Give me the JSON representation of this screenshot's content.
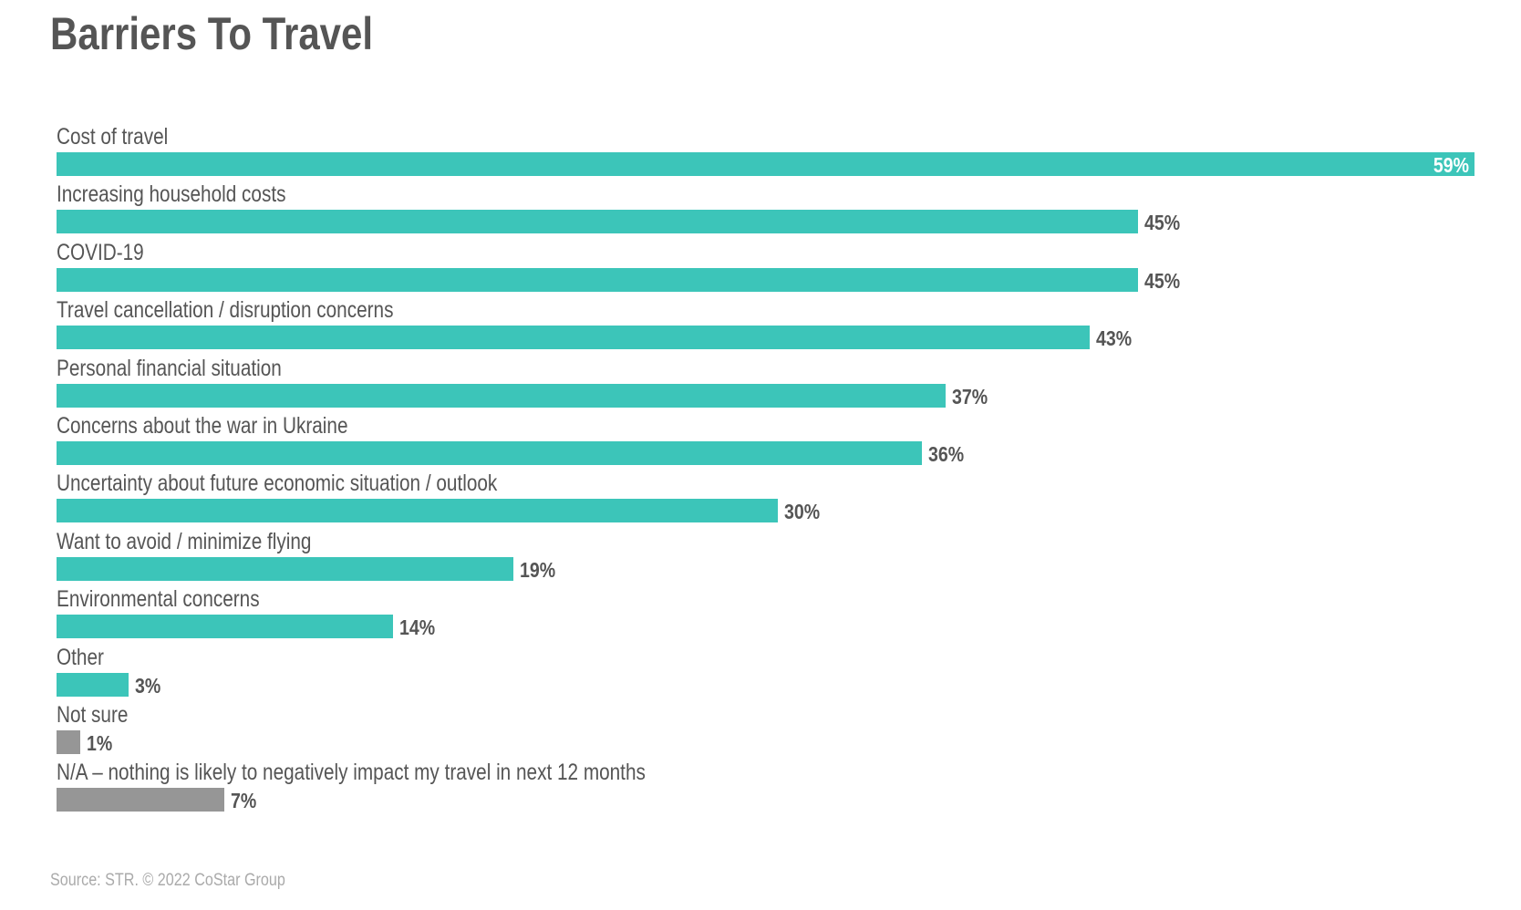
{
  "chart_data": {
    "type": "bar",
    "orientation": "horizontal",
    "title": "Barriers To Travel",
    "categories": [
      "Cost of travel",
      "Increasing household costs",
      "COVID-19",
      "Travel cancellation / disruption concerns",
      "Personal financial situation",
      "Concerns about the war in Ukraine",
      "Uncertainty about future economic situation / outlook",
      "Want to avoid / minimize flying",
      "Environmental concerns",
      "Other",
      "Not sure",
      "N/A – nothing is likely to negatively impact my travel in next 12 months"
    ],
    "values": [
      59,
      45,
      45,
      43,
      37,
      36,
      30,
      19,
      14,
      3,
      1,
      7
    ],
    "data_labels": [
      "59%",
      "45%",
      "45%",
      "43%",
      "37%",
      "36%",
      "30%",
      "19%",
      "14%",
      "3%",
      "1%",
      "7%"
    ],
    "bar_colors": [
      "#3cc5b9",
      "#3cc5b9",
      "#3cc5b9",
      "#3cc5b9",
      "#3cc5b9",
      "#3cc5b9",
      "#3cc5b9",
      "#3cc5b9",
      "#3cc5b9",
      "#3cc5b9",
      "#969696",
      "#969696"
    ],
    "unit": "%",
    "xlabel": "",
    "ylabel": "",
    "grid": false,
    "source": "Source: STR. © 2022 CoStar Group"
  }
}
